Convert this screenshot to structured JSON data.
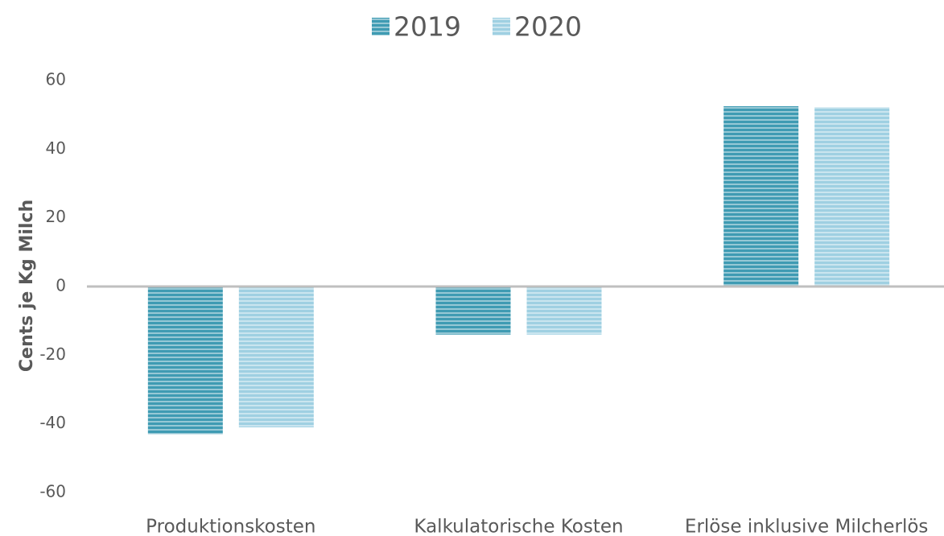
{
  "chart_data": {
    "type": "bar",
    "ylabel": "Cents je Kg Milch",
    "categories": [
      "Produktionskosten",
      "Kalkulatorische Kosten",
      "Erlöse inklusive Milcherlös"
    ],
    "series": [
      {
        "name": "2019",
        "color": "#3f9bb3",
        "values": [
          -43,
          -14,
          52.5
        ]
      },
      {
        "name": "2020",
        "color": "#9fd0e2",
        "values": [
          -41,
          -14,
          52.2
        ]
      }
    ],
    "ylim": [
      -60,
      60
    ],
    "yticks": [
      -60,
      -40,
      -20,
      0,
      20,
      40,
      60
    ],
    "grid": false,
    "legend": "top"
  }
}
